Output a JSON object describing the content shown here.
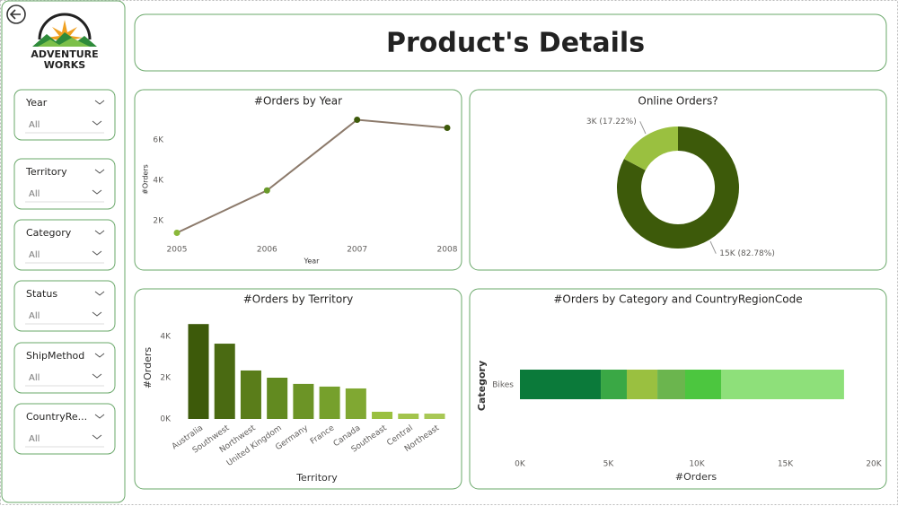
{
  "sidebar": {
    "logo": {
      "line1": "ADVENTURE",
      "line2": "WORKS"
    },
    "slicers": [
      {
        "label": "Year",
        "value": "All"
      },
      {
        "label": "Territory",
        "value": "All"
      },
      {
        "label": "Category",
        "value": "All"
      },
      {
        "label": "Status",
        "value": "All"
      },
      {
        "label": "ShipMethod",
        "value": "All"
      },
      {
        "label": "CountryRe...",
        "value": "All"
      }
    ]
  },
  "header": {
    "title": "Product's Details"
  },
  "chart_data": [
    {
      "type": "line",
      "title": "#Orders by Year",
      "xlabel": "Year",
      "ylabel": "#Orders",
      "x": [
        2005,
        2006,
        2007,
        2008
      ],
      "xlim": [
        2005,
        2008
      ],
      "xticks": [
        2005,
        2006,
        2007,
        2008
      ],
      "ylim": [
        1000,
        7200
      ],
      "yticks": [
        {
          "value": 2000,
          "label": "2K"
        },
        {
          "value": 4000,
          "label": "4K"
        },
        {
          "value": 6000,
          "label": "6K"
        }
      ],
      "series": [
        {
          "color": "#8c7a6b",
          "values": [
            1400,
            3500,
            7000,
            6600
          ]
        }
      ],
      "marker_colors": [
        "#8ab83a",
        "#6a9a2a",
        "#3d5a0a",
        "#3d5a0a"
      ]
    },
    {
      "type": "donut",
      "title": "Online Orders?",
      "values": [
        82.78,
        17.22
      ],
      "value_labels": [
        "15K (82.78%)",
        "3K (17.22%)"
      ],
      "colors": [
        "#3d5a0a",
        "#9ac040"
      ]
    },
    {
      "type": "bar",
      "title": "#Orders by Territory",
      "xlabel": "Territory",
      "ylabel": "#Orders",
      "categories": [
        "Australia",
        "Southwest",
        "Northwest",
        "United Kingdom",
        "Germany",
        "France",
        "Canada",
        "Southeast",
        "Central",
        "Northeast"
      ],
      "values": [
        4600,
        3650,
        2350,
        2000,
        1700,
        1570,
        1480,
        350,
        260,
        260
      ],
      "colors": [
        "#3d5a0a",
        "#4a6a12",
        "#5a7d1a",
        "#628a20",
        "#6c9426",
        "#76a02c",
        "#80a832",
        "#9ac040",
        "#a2c44c",
        "#a8c855"
      ],
      "ylim": [
        0,
        4800
      ],
      "yticks": [
        {
          "value": 0,
          "label": "0K"
        },
        {
          "value": 2000,
          "label": "2K"
        },
        {
          "value": 4000,
          "label": "4K"
        }
      ]
    },
    {
      "type": "barh",
      "title": "#Orders by Category and CountryRegionCode",
      "xlabel": "#Orders",
      "ylabel": "Category",
      "categories": [
        "Bikes"
      ],
      "series": [
        {
          "color": "#0b7a3a",
          "values": [
            4570
          ]
        },
        {
          "color": "#3aa845",
          "values": [
            1470
          ]
        },
        {
          "color": "#9ac040",
          "values": [
            1730
          ]
        },
        {
          "color": "#6bb54e",
          "values": [
            1570
          ]
        },
        {
          "color": "#4cc63f",
          "values": [
            2030
          ]
        },
        {
          "color": "#8ee07a",
          "values": [
            6950
          ]
        }
      ],
      "xlim": [
        0,
        20000
      ],
      "xticks": [
        {
          "value": 0,
          "label": "0K"
        },
        {
          "value": 5000,
          "label": "5K"
        },
        {
          "value": 10000,
          "label": "10K"
        },
        {
          "value": 15000,
          "label": "15K"
        },
        {
          "value": 20000,
          "label": "20K"
        }
      ]
    }
  ]
}
